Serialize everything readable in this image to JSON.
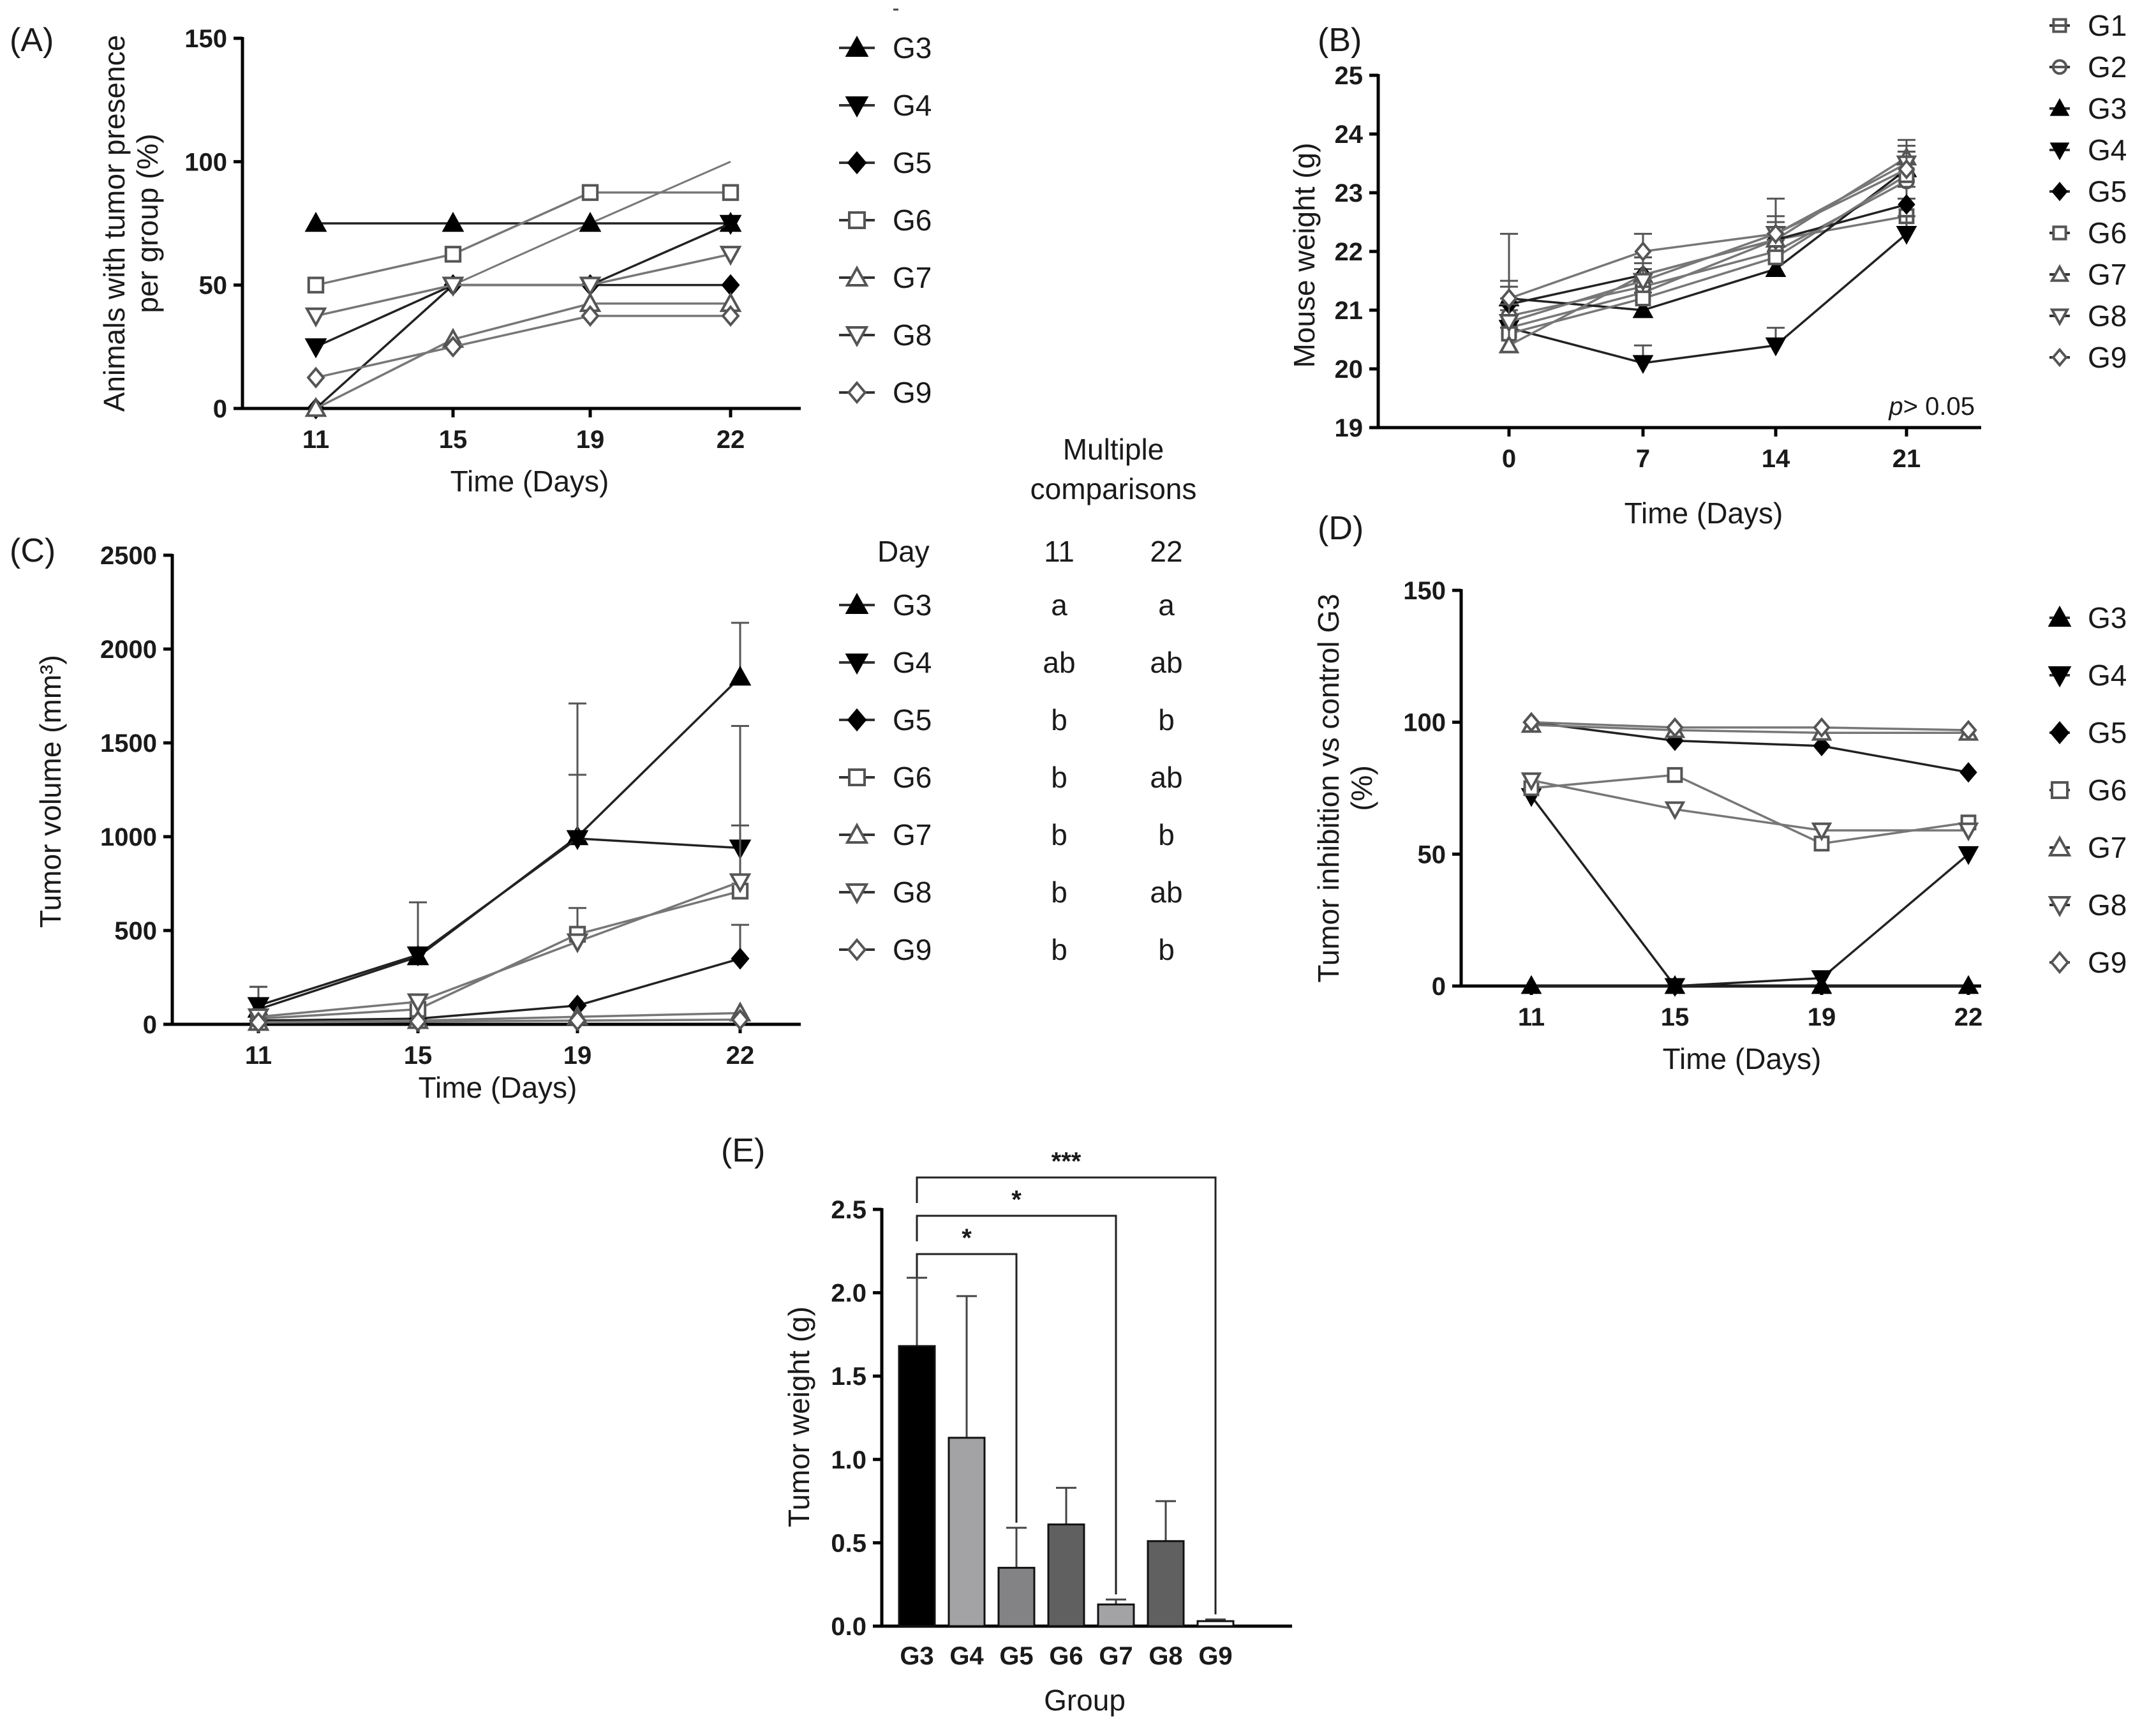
{
  "styles": {
    "G1": {
      "shape": "square-cross",
      "fill": "none",
      "color": "#555555"
    },
    "G2": {
      "shape": "circle-cross",
      "fill": "none",
      "color": "#555555"
    },
    "G3": {
      "shape": "triangle-up",
      "fill": "#000000",
      "color": "#000000"
    },
    "G4": {
      "shape": "triangle-down",
      "fill": "#000000",
      "color": "#000000"
    },
    "G5": {
      "shape": "diamond",
      "fill": "#000000",
      "color": "#000000"
    },
    "G6": {
      "shape": "square",
      "fill": "none",
      "color": "#555555"
    },
    "G7": {
      "shape": "triangle-up",
      "fill": "none",
      "color": "#555555"
    },
    "G8": {
      "shape": "triangle-down",
      "fill": "none",
      "color": "#555555"
    },
    "G9": {
      "shape": "diamond",
      "fill": "none",
      "color": "#555555"
    }
  },
  "chart_data": [
    {
      "id": "A",
      "panel_label": "(A)",
      "type": "line",
      "xlabel": "Time (Days)",
      "ylabel": [
        "Animals with tumor presence",
        "per group (%)"
      ],
      "x": [
        11,
        15,
        19,
        22
      ],
      "xticks": [
        "11",
        "15",
        "19",
        "22"
      ],
      "ylim": [
        0,
        150
      ],
      "yticks": [
        "0",
        "50",
        "100",
        "150"
      ],
      "series": [
        {
          "name": "G3",
          "values": [
            75,
            75,
            75,
            75
          ]
        },
        {
          "name": "G4",
          "values": [
            25,
            50,
            50,
            75
          ]
        },
        {
          "name": "G5",
          "values": [
            0,
            50,
            50,
            50
          ]
        },
        {
          "name": "G6",
          "values": [
            50,
            62.5,
            87.5,
            87.5
          ]
        },
        {
          "name": "G7",
          "values": [
            0,
            28,
            42.5,
            42.5
          ]
        },
        {
          "name": "G8",
          "values": [
            37.5,
            50,
            50,
            62.5
          ]
        },
        {
          "name": "G9",
          "values": [
            12.5,
            25,
            37.5,
            37.5
          ]
        }
      ],
      "extra_lines": [
        {
          "name": "G3",
          "values": [
            0,
            50,
            75,
            100
          ]
        }
      ]
    },
    {
      "id": "B",
      "panel_label": "(B)",
      "type": "line",
      "xlabel": "Time (Days)",
      "ylabel": [
        "Mouse weight (g)"
      ],
      "x": [
        0,
        7,
        14,
        21
      ],
      "xticks": [
        "0",
        "7",
        "14",
        "21"
      ],
      "ylim": [
        19,
        25
      ],
      "yticks": [
        "19",
        "20",
        "21",
        "22",
        "23",
        "24",
        "25"
      ],
      "annotation": {
        "italic": "p",
        "rest": "> 0.05"
      },
      "series": [
        {
          "name": "G1",
          "values": [
            20.7,
            21.3,
            22.2,
            22.6
          ],
          "err": [
            0.3,
            0.3,
            0.3,
            0.3
          ]
        },
        {
          "name": "G2",
          "values": [
            20.9,
            21.4,
            22.0,
            23.2
          ],
          "err": [
            0.3,
            0.3,
            0.3,
            0.3
          ]
        },
        {
          "name": "G3",
          "values": [
            21.2,
            21.0,
            21.7,
            23.4
          ],
          "err": [
            0.3,
            0.3,
            0.3,
            0.3
          ]
        },
        {
          "name": "G4",
          "values": [
            20.7,
            20.1,
            20.4,
            22.3
          ],
          "err": [
            0.3,
            0.3,
            0.3,
            0.3
          ]
        },
        {
          "name": "G5",
          "values": [
            21.1,
            21.6,
            22.2,
            22.8
          ],
          "err": [
            0.3,
            0.3,
            0.3,
            0.3
          ]
        },
        {
          "name": "G6",
          "values": [
            20.6,
            21.2,
            21.9,
            23.3
          ],
          "err": [
            0.3,
            0.3,
            0.3,
            0.3
          ]
        },
        {
          "name": "G7",
          "values": [
            20.4,
            21.6,
            22.2,
            23.6
          ],
          "err": [
            0.3,
            0.3,
            0.3,
            0.3
          ]
        },
        {
          "name": "G8",
          "values": [
            20.8,
            21.5,
            22.3,
            23.5
          ],
          "err": [
            0.3,
            0.3,
            0.3,
            0.3
          ]
        },
        {
          "name": "G9",
          "values": [
            21.2,
            22.0,
            22.3,
            23.4
          ],
          "err": [
            1.1,
            0.3,
            0.6,
            0.3
          ]
        }
      ]
    },
    {
      "id": "C",
      "panel_label": "(C)",
      "type": "line",
      "xlabel": "Time (Days)",
      "ylabel": [
        "Tumor volume (mm³)"
      ],
      "x": [
        11,
        15,
        19,
        22
      ],
      "xticks": [
        "11",
        "15",
        "19",
        "22"
      ],
      "ylim": [
        0,
        2500
      ],
      "yticks": [
        "0",
        "500",
        "1000",
        "1500",
        "2000",
        "2500"
      ],
      "series": [
        {
          "name": "G3",
          "values": [
            80,
            360,
            1000,
            1850
          ],
          "err": [
            120,
            290,
            710,
            290
          ]
        },
        {
          "name": "G4",
          "values": [
            100,
            370,
            990,
            940
          ],
          "err": [
            100,
            0,
            340,
            650
          ]
        },
        {
          "name": "G5",
          "values": [
            20,
            30,
            100,
            350
          ],
          "err": [
            0,
            0,
            0,
            180
          ]
        },
        {
          "name": "G6",
          "values": [
            30,
            80,
            480,
            710
          ],
          "err": [
            0,
            0,
            140,
            350
          ]
        },
        {
          "name": "G7",
          "values": [
            10,
            20,
            40,
            60
          ],
          "err": [
            0,
            0,
            0,
            0
          ]
        },
        {
          "name": "G8",
          "values": [
            40,
            120,
            440,
            760
          ],
          "err": [
            0,
            0,
            0,
            0
          ]
        },
        {
          "name": "G9",
          "values": [
            10,
            15,
            20,
            25
          ],
          "err": [
            0,
            0,
            0,
            0
          ]
        }
      ],
      "table": {
        "title_lines": [
          "Multiple",
          "comparisons"
        ],
        "headers": [
          "Day",
          "11",
          "22"
        ],
        "rows": [
          {
            "group": "G3",
            "d11": "a",
            "d22": "a"
          },
          {
            "group": "G4",
            "d11": "ab",
            "d22": "ab"
          },
          {
            "group": "G5",
            "d11": "b",
            "d22": "b"
          },
          {
            "group": "G6",
            "d11": "b",
            "d22": "ab"
          },
          {
            "group": "G7",
            "d11": "b",
            "d22": "b"
          },
          {
            "group": "G8",
            "d11": "b",
            "d22": "ab"
          },
          {
            "group": "G9",
            "d11": "b",
            "d22": "b"
          }
        ]
      }
    },
    {
      "id": "D",
      "panel_label": "(D)",
      "type": "line",
      "xlabel": "Time (Days)",
      "ylabel": [
        "Tumor inhibition vs control G3",
        "(%)"
      ],
      "x": [
        11,
        15,
        19,
        22
      ],
      "xticks": [
        "11",
        "15",
        "19",
        "22"
      ],
      "ylim": [
        0,
        150
      ],
      "yticks": [
        "0",
        "50",
        "100",
        "150"
      ],
      "series": [
        {
          "name": "G3",
          "values": [
            0,
            0,
            0,
            0
          ]
        },
        {
          "name": "G4",
          "values": [
            72,
            0,
            3,
            50
          ]
        },
        {
          "name": "G5",
          "values": [
            100,
            93,
            91,
            81
          ]
        },
        {
          "name": "G6",
          "values": [
            75,
            80,
            54,
            62
          ]
        },
        {
          "name": "G7",
          "values": [
            99,
            97,
            96,
            96
          ]
        },
        {
          "name": "G8",
          "values": [
            78,
            67,
            59,
            59
          ]
        },
        {
          "name": "G9",
          "values": [
            100,
            98,
            98,
            97
          ]
        }
      ]
    },
    {
      "id": "E",
      "panel_label": "(E)",
      "type": "bar",
      "xlabel": "Group",
      "ylabel": [
        "Tumor weight (g)"
      ],
      "categories": [
        "G3",
        "G4",
        "G5",
        "G6",
        "G7",
        "G8",
        "G9"
      ],
      "values": [
        1.68,
        1.13,
        0.35,
        0.61,
        0.13,
        0.51,
        0.03
      ],
      "errors": [
        0.41,
        0.85,
        0.24,
        0.22,
        0.03,
        0.24,
        0.01
      ],
      "colors": [
        "#000000",
        "#a3a3a6",
        "#838386",
        "#606060",
        "#a3a3a6",
        "#606060",
        "#ffffff"
      ],
      "ylim": [
        0,
        2.5
      ],
      "yticks": [
        "0.0",
        "0.5",
        "1.0",
        "1.5",
        "2.0",
        "2.5"
      ],
      "significance": [
        {
          "from": "G3",
          "to": "G5",
          "label": "*"
        },
        {
          "from": "G3",
          "to": "G7",
          "label": "*"
        },
        {
          "from": "G3",
          "to": "G9",
          "label": "***"
        }
      ]
    }
  ]
}
